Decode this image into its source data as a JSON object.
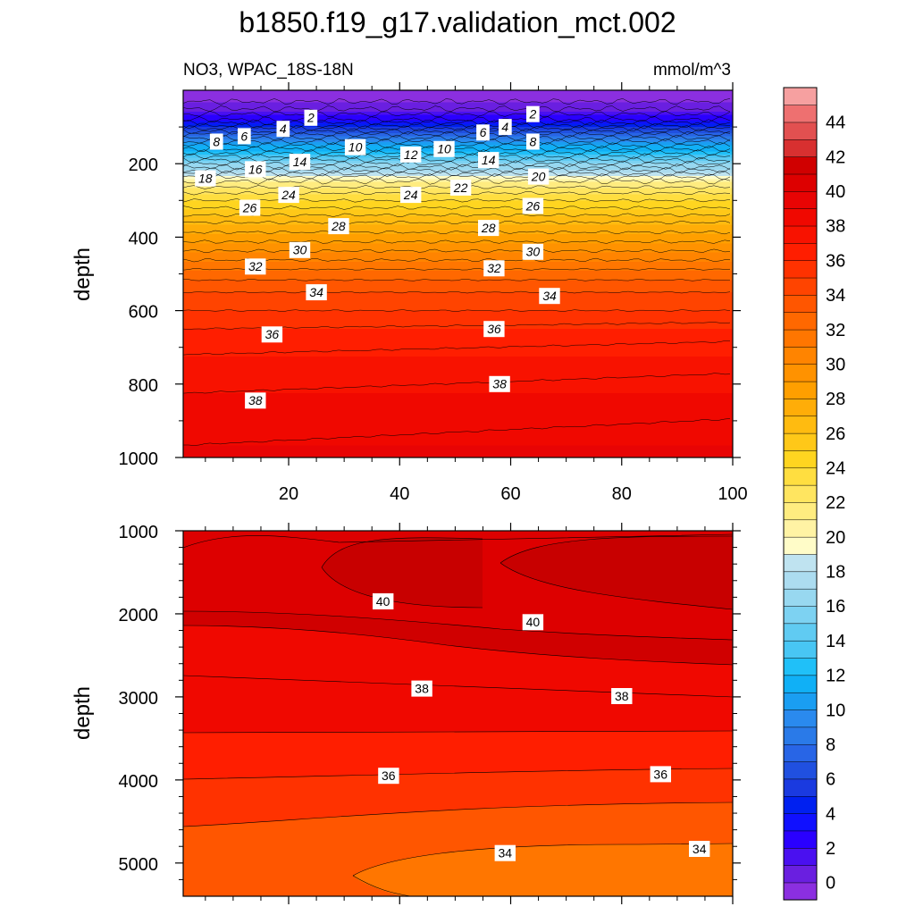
{
  "chart_data": {
    "type": "contour",
    "title": "b1850.f19_g17.validation_mct.002",
    "subtitle_left": "NO3, WPAC_18S-18N",
    "units": "mmol/m^3",
    "panels": [
      {
        "name": "upper",
        "ylabel": "depth",
        "xlim": [
          1,
          100
        ],
        "ylim": [
          0,
          1000
        ],
        "xticks": [
          20,
          40,
          60,
          80,
          100
        ],
        "yticks": [
          200,
          400,
          600,
          800,
          1000
        ],
        "ytick_labels": [
          "200",
          "400",
          "600",
          "800",
          "1000"
        ],
        "xtick_labels": [
          "20",
          "40",
          "60",
          "80",
          "100"
        ],
        "depth_profile": [
          [
            0,
            -1
          ],
          [
            40,
            0.3
          ],
          [
            80,
            3
          ],
          [
            120,
            8
          ],
          [
            160,
            12
          ],
          [
            200,
            16
          ],
          [
            240,
            20.5
          ],
          [
            280,
            23
          ],
          [
            320,
            25
          ],
          [
            360,
            27
          ],
          [
            400,
            28.5
          ],
          [
            450,
            30.5
          ],
          [
            500,
            32.5
          ],
          [
            550,
            34
          ],
          [
            600,
            35
          ],
          [
            650,
            36
          ],
          [
            700,
            36.8
          ],
          [
            800,
            37.8
          ],
          [
            900,
            38.6
          ],
          [
            1000,
            39.2
          ]
        ],
        "contour_labels": [
          {
            "value": "2",
            "x": 24,
            "y": 75
          },
          {
            "value": "4",
            "x": 19,
            "y": 105
          },
          {
            "value": "6",
            "x": 12,
            "y": 125
          },
          {
            "value": "8",
            "x": 7,
            "y": 140
          },
          {
            "value": "10",
            "x": 32,
            "y": 155
          },
          {
            "value": "12",
            "x": 42,
            "y": 175
          },
          {
            "value": "10",
            "x": 48,
            "y": 160
          },
          {
            "value": "6",
            "x": 55,
            "y": 115
          },
          {
            "value": "4",
            "x": 59,
            "y": 100
          },
          {
            "value": "2",
            "x": 64,
            "y": 65
          },
          {
            "value": "8",
            "x": 64,
            "y": 140
          },
          {
            "value": "14",
            "x": 22,
            "y": 195
          },
          {
            "value": "16",
            "x": 14,
            "y": 215
          },
          {
            "value": "14",
            "x": 56,
            "y": 190
          },
          {
            "value": "18",
            "x": 5,
            "y": 240
          },
          {
            "value": "20",
            "x": 65,
            "y": 235
          },
          {
            "value": "24",
            "x": 20,
            "y": 285
          },
          {
            "value": "24",
            "x": 42,
            "y": 285
          },
          {
            "value": "22",
            "x": 51,
            "y": 265
          },
          {
            "value": "26",
            "x": 13,
            "y": 320
          },
          {
            "value": "26",
            "x": 64,
            "y": 315
          },
          {
            "value": "28",
            "x": 29,
            "y": 370
          },
          {
            "value": "28",
            "x": 56,
            "y": 375
          },
          {
            "value": "30",
            "x": 22,
            "y": 435
          },
          {
            "value": "30",
            "x": 64,
            "y": 440
          },
          {
            "value": "32",
            "x": 14,
            "y": 480
          },
          {
            "value": "32",
            "x": 57,
            "y": 485
          },
          {
            "value": "34",
            "x": 25,
            "y": 550
          },
          {
            "value": "34",
            "x": 67,
            "y": 560
          },
          {
            "value": "36",
            "x": 17,
            "y": 665
          },
          {
            "value": "36",
            "x": 57,
            "y": 650
          },
          {
            "value": "38",
            "x": 58,
            "y": 800
          },
          {
            "value": "38",
            "x": 14,
            "y": 845
          }
        ]
      },
      {
        "name": "lower",
        "ylabel": "depth",
        "xlim": [
          1,
          100
        ],
        "ylim": [
          1000,
          5400
        ],
        "yticks": [
          1000,
          2000,
          3000,
          4000,
          5000
        ],
        "ytick_labels": [
          "1000",
          "2000",
          "3000",
          "4000",
          "5000"
        ],
        "contour_labels": [
          {
            "value": "40",
            "x": 37,
            "y": 1850
          },
          {
            "value": "40",
            "x": 64,
            "y": 2100
          },
          {
            "value": "38",
            "x": 44,
            "y": 2900
          },
          {
            "value": "38",
            "x": 80,
            "y": 2990
          },
          {
            "value": "36",
            "x": 38,
            "y": 3950
          },
          {
            "value": "36",
            "x": 87,
            "y": 3930
          },
          {
            "value": "34",
            "x": 59,
            "y": 4880
          },
          {
            "value": "34",
            "x": 94,
            "y": 4830
          }
        ]
      }
    ],
    "colorbar": {
      "levels": [
        -1,
        0,
        1,
        2,
        3,
        4,
        5,
        6,
        7,
        8,
        9,
        10,
        11,
        12,
        13,
        14,
        15,
        16,
        17,
        18,
        19,
        20,
        21,
        22,
        23,
        24,
        25,
        26,
        27,
        28,
        29,
        30,
        31,
        32,
        33,
        34,
        35,
        36,
        37,
        38,
        39,
        40,
        41,
        42,
        43,
        44,
        45,
        46
      ],
      "labels": [
        "0",
        "2",
        "4",
        "6",
        "8",
        "10",
        "12",
        "14",
        "16",
        "18",
        "20",
        "22",
        "24",
        "26",
        "28",
        "30",
        "32",
        "34",
        "36",
        "38",
        "40",
        "42",
        "44"
      ],
      "colors": [
        "#8b2fe0",
        "#6a1fe0",
        "#4a10f0",
        "#2a00ff",
        "#1010ff",
        "#0020f0",
        "#1a3ae0",
        "#2050e0",
        "#2865e6",
        "#2a7ae8",
        "#2a8aee",
        "#1a9ef2",
        "#10b0f6",
        "#20c0f8",
        "#48c6f4",
        "#60cbf2",
        "#7dd2f2",
        "#98d8f0",
        "#acdcf0",
        "#bfe3f0",
        "#fffcc8",
        "#fff3a4",
        "#ffec80",
        "#ffe560",
        "#ffde40",
        "#ffd520",
        "#ffc818",
        "#ffbb10",
        "#ffad08",
        "#ff9f00",
        "#ff9200",
        "#ff8400",
        "#ff7600",
        "#ff6800",
        "#ff5600",
        "#ff4400",
        "#ff3200",
        "#ff1e00",
        "#f81200",
        "#f00800",
        "#e80404",
        "#dd0000",
        "#d00000",
        "#d83030",
        "#e25050",
        "#ee7070",
        "#f6a0a0"
      ]
    }
  }
}
